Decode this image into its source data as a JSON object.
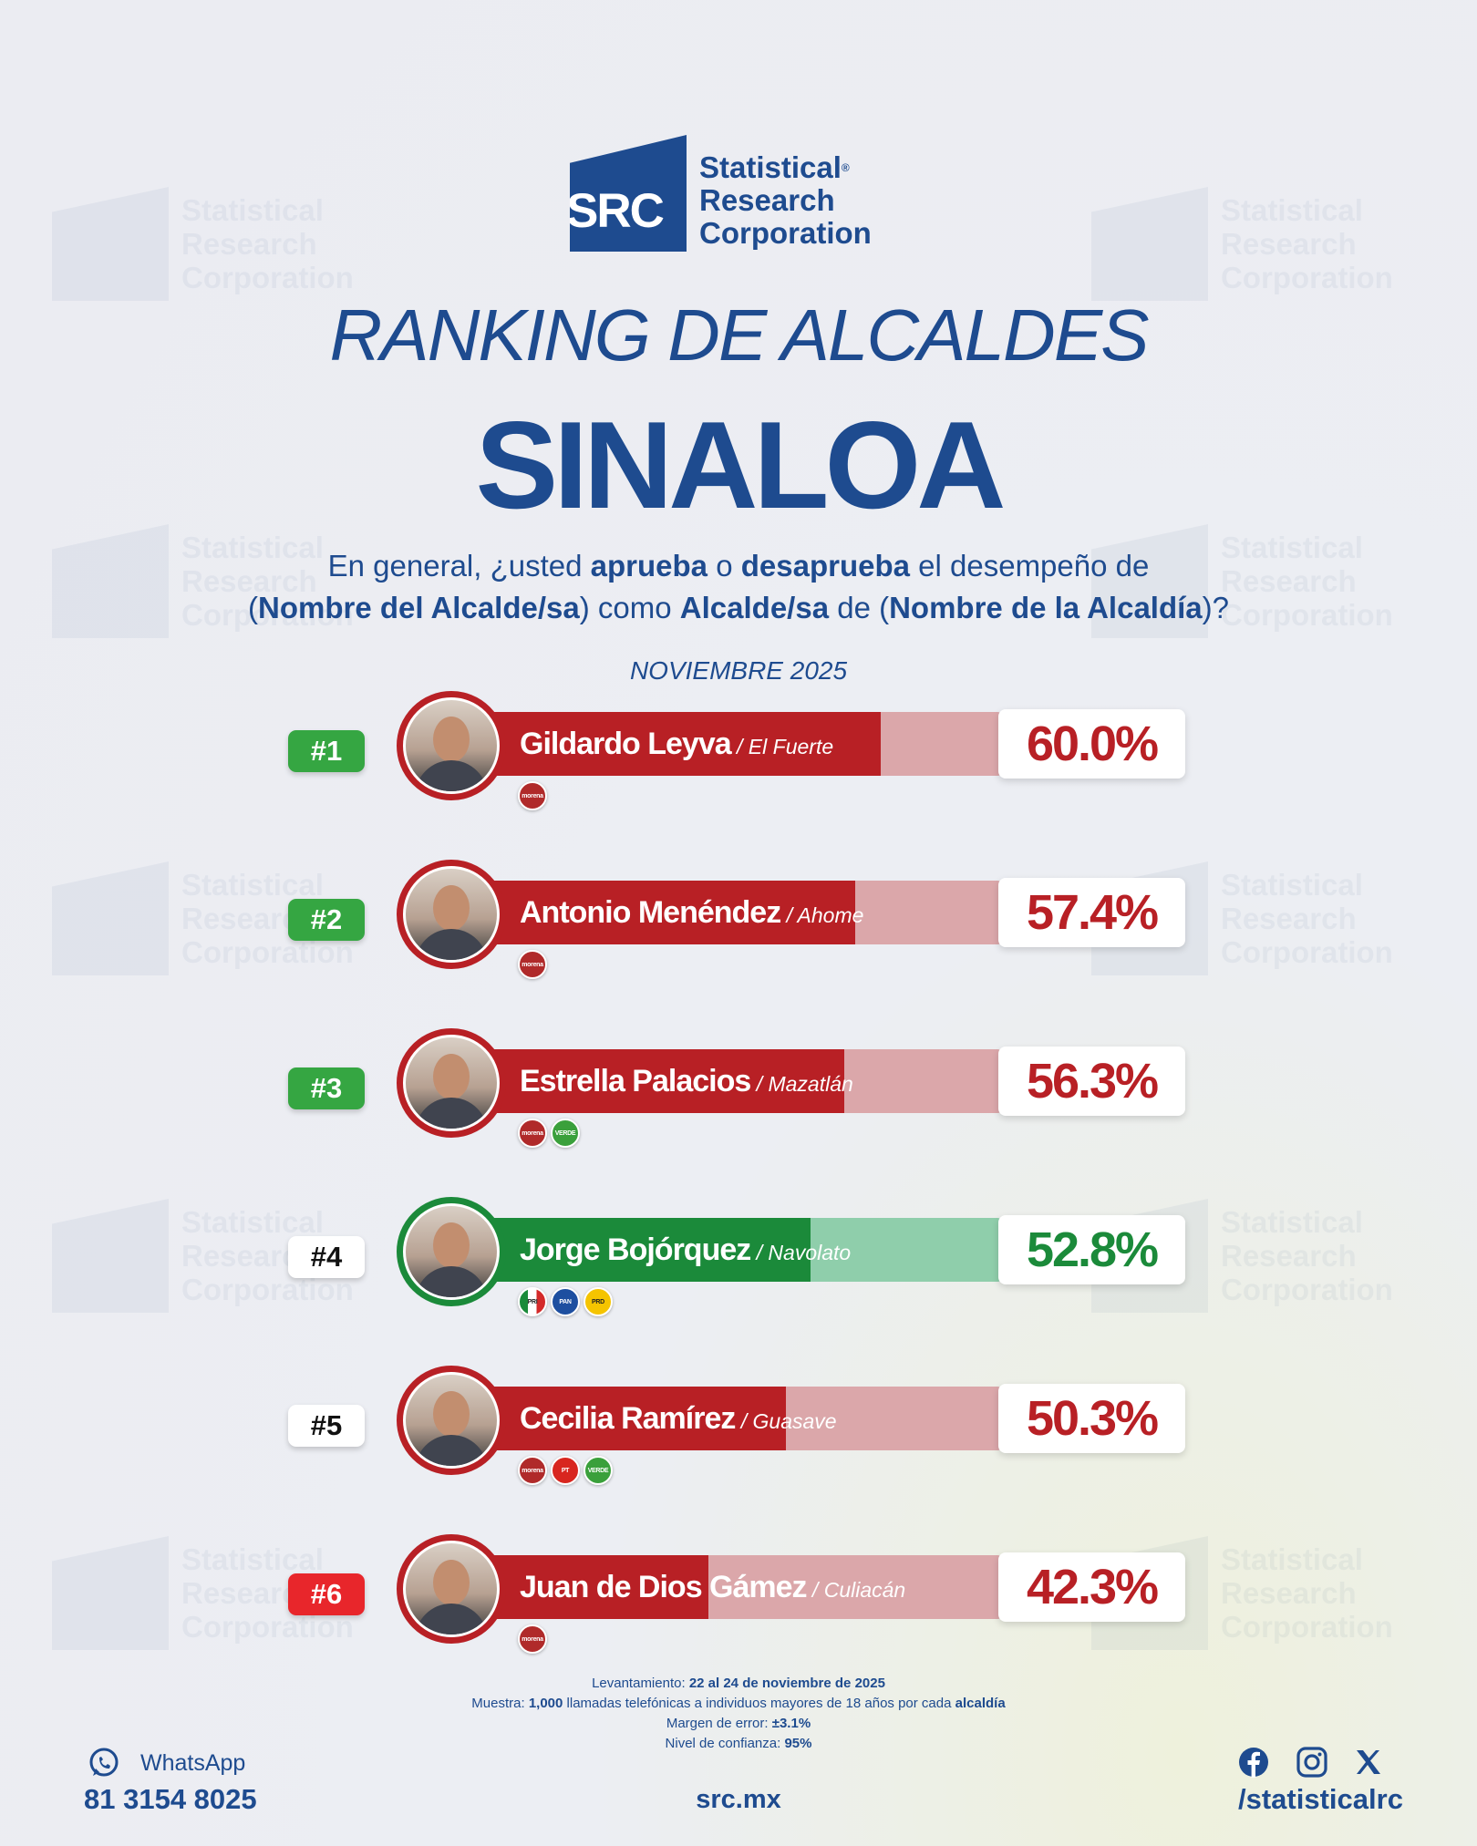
{
  "logo": {
    "initials": "SRC",
    "line1": "Statistical",
    "line2": "Research",
    "line3": "Corporation",
    "mark": "®"
  },
  "title_line1": "RANKING DE ALCALDES",
  "title_line2": "SINALOA",
  "question": {
    "p1": "En general, ¿usted ",
    "b1": "aprueba",
    "p2": " o ",
    "b2": "desaprueba",
    "p3": " el desempeño de",
    "p4": "(",
    "b3": "Nombre del Alcalde/sa",
    "p5": ") como ",
    "b4": "Alcalde/sa",
    "p6": " de (",
    "b5": "Nombre de la Alcaldía",
    "p7": ")?"
  },
  "date": "NOVIEMBRE 2025",
  "colors": {
    "red": "#b82025",
    "red_light": "#dba7aa",
    "green": "#1b8a3a",
    "green_light": "#8fceab",
    "rank_green": "#35a642",
    "rank_red": "#e8262b",
    "navy": "#1e4b8f"
  },
  "chart_data": {
    "type": "bar",
    "title": "RANKING DE ALCALDES SINALOA",
    "categories": [
      "Gildardo Leyva",
      "Antonio Menéndez",
      "Estrella Palacios",
      "Jorge Bojórquez",
      "Cecilia Ramírez",
      "Juan de Dios Gámez"
    ],
    "values": [
      60.0,
      57.4,
      56.3,
      52.8,
      50.3,
      42.3
    ],
    "unit": "%",
    "rows": [
      {
        "rank": "#1",
        "name": "Gildardo Leyva",
        "city": "/ El Fuerte",
        "pct": 60.0,
        "label": "60.0%",
        "bar_color": "red",
        "rank_style": "green",
        "parties": [
          "morena"
        ]
      },
      {
        "rank": "#2",
        "name": "Antonio Menéndez",
        "city": "/ Ahome",
        "pct": 57.4,
        "label": "57.4%",
        "bar_color": "red",
        "rank_style": "green",
        "parties": [
          "morena"
        ]
      },
      {
        "rank": "#3",
        "name": "Estrella Palacios",
        "city": "/ Mazatlán",
        "pct": 56.3,
        "label": "56.3%",
        "bar_color": "red",
        "rank_style": "green",
        "parties": [
          "morena",
          "VERDE"
        ]
      },
      {
        "rank": "#4",
        "name": "Jorge Bojórquez",
        "city": "/ Navolato",
        "pct": 52.8,
        "label": "52.8%",
        "bar_color": "green",
        "rank_style": "white",
        "parties": [
          "PRI",
          "PAN",
          "PRD"
        ]
      },
      {
        "rank": "#5",
        "name": "Cecilia Ramírez",
        "city": "/ Guasave",
        "pct": 50.3,
        "label": "50.3%",
        "bar_color": "red",
        "rank_style": "white",
        "parties": [
          "morena",
          "PT",
          "VERDE"
        ]
      },
      {
        "rank": "#6",
        "name": "Juan de Dios Gámez",
        "city": "/ Culiacán",
        "pct": 42.3,
        "label": "42.3%",
        "bar_color": "red",
        "rank_style": "red",
        "parties": [
          "morena"
        ]
      }
    ]
  },
  "methodology": {
    "l1_label": "Levantamiento: ",
    "l1_value": "22 al 24 de noviembre de 2025",
    "l2_label": "Muestra: ",
    "l2_value": "1,000",
    "l2_text": " llamadas telefónicas a individuos mayores de 18 años por cada ",
    "l2_bold": "alcaldía",
    "l3_label": "Margen de error: ",
    "l3_value": "±3.1%",
    "l4_label": "Nivel de confianza: ",
    "l4_value": "95%"
  },
  "footer": {
    "whatsapp_label": "WhatsApp",
    "phone": "81 3154 8025",
    "site": "src.mx",
    "handle": "/statisticalrc",
    "social_icons": [
      "facebook-icon",
      "instagram-icon",
      "x-icon"
    ]
  }
}
